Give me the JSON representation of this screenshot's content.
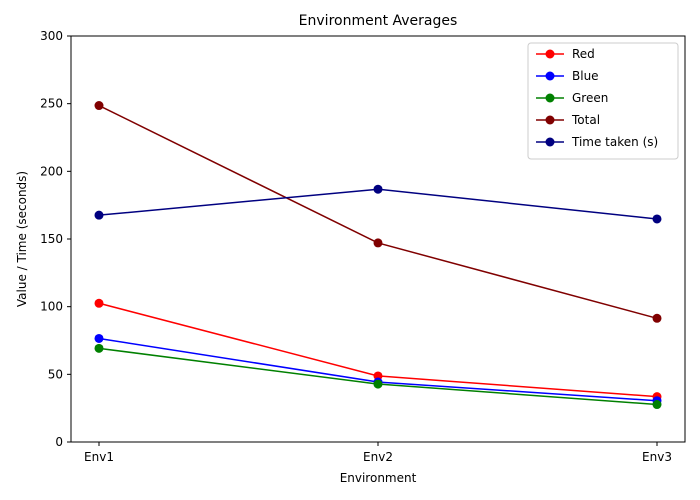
{
  "chart_data": {
    "type": "line",
    "title": "Environment Averages",
    "xlabel": "Environment",
    "ylabel": "Value / Time (seconds)",
    "categories": [
      "Env1",
      "Env2",
      "Env3"
    ],
    "ylim": [
      0,
      300
    ],
    "yticks": [
      0,
      50,
      100,
      150,
      200,
      250,
      300
    ],
    "grid": false,
    "legend_position": "top-right",
    "series": [
      {
        "name": "Red",
        "color": "#ff0000",
        "values": [
          102.5,
          48.8,
          33.5
        ]
      },
      {
        "name": "Blue",
        "color": "#0000ff",
        "values": [
          76.5,
          44.3,
          30.5
        ]
      },
      {
        "name": "Green",
        "color": "#008000",
        "values": [
          69.2,
          42.8,
          27.7
        ]
      },
      {
        "name": "Total",
        "color": "#800000",
        "values": [
          248.6,
          147.1,
          91.4
        ]
      },
      {
        "name": "Time taken (s)",
        "color": "#000080",
        "values": [
          167.6,
          186.8,
          164.8
        ]
      }
    ]
  }
}
